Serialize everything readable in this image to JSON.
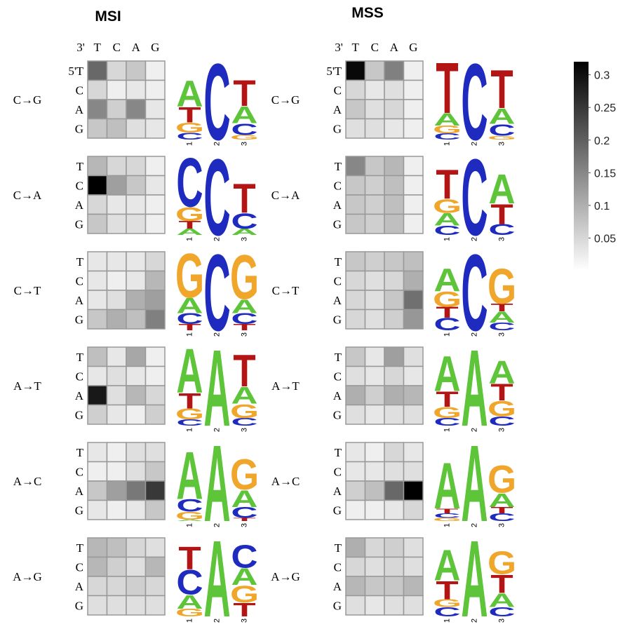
{
  "colors": {
    "A": "#5ec43a",
    "C": "#1f2bbf",
    "G": "#efa62a",
    "T": "#b31515",
    "grid_line": "#999999",
    "cell_gradient": [
      "#ffffff",
      "#000000"
    ]
  },
  "chart_data": [
    {
      "type": "heatmap",
      "title": "MSI",
      "corner_labels": {
        "col_end": "3'",
        "row_end": "5'"
      },
      "columns": [
        "T",
        "C",
        "A",
        "G"
      ],
      "rows": [
        "T",
        "C",
        "A",
        "G"
      ],
      "color_scale": {
        "min": 0,
        "max": 0.32,
        "ticks": [
          "0.3",
          "0.25",
          "0.2",
          "0.15",
          "0.1",
          "0.05"
        ],
        "tick_values": [
          0.3,
          0.25,
          0.2,
          0.15,
          0.1,
          0.05
        ]
      },
      "panels": [
        {
          "mutation": "C→G",
          "values": [
            [
              0.19,
              0.05,
              0.07,
              0.02
            ],
            [
              0.05,
              0.02,
              0.03,
              0.02
            ],
            [
              0.15,
              0.06,
              0.15,
              0.03
            ],
            [
              0.07,
              0.08,
              0.04,
              0.03
            ]
          ],
          "logo": [
            [
              {
                "b": "C",
                "h": 0.09
              },
              {
                "b": "G",
                "h": 0.13
              },
              {
                "b": "T",
                "h": 0.2
              },
              {
                "b": "A",
                "h": 0.34
              }
            ],
            [
              {
                "b": "C",
                "h": 1.0
              }
            ],
            [
              {
                "b": "G",
                "h": 0.06
              },
              {
                "b": "C",
                "h": 0.15
              },
              {
                "b": "A",
                "h": 0.22
              },
              {
                "b": "T",
                "h": 0.34
              }
            ]
          ]
        },
        {
          "mutation": "C→A",
          "values": [
            [
              0.09,
              0.05,
              0.05,
              0.02
            ],
            [
              0.32,
              0.12,
              0.07,
              0.03
            ],
            [
              0.05,
              0.03,
              0.03,
              0.02
            ],
            [
              0.07,
              0.04,
              0.04,
              0.02
            ]
          ],
          "logo": [
            [
              {
                "b": "A",
                "h": 0.08
              },
              {
                "b": "T",
                "h": 0.1
              },
              {
                "b": "G",
                "h": 0.18
              },
              {
                "b": "C",
                "h": 0.64
              }
            ],
            [
              {
                "b": "C",
                "h": 1.0
              }
            ],
            [
              {
                "b": "A",
                "h": 0.08
              },
              {
                "b": "C",
                "h": 0.2
              },
              {
                "b": "T",
                "h": 0.38
              }
            ]
          ]
        },
        {
          "mutation": "C→T",
          "values": [
            [
              0.03,
              0.03,
              0.03,
              0.05
            ],
            [
              0.03,
              0.02,
              0.03,
              0.09
            ],
            [
              0.03,
              0.04,
              0.1,
              0.12
            ],
            [
              0.07,
              0.1,
              0.08,
              0.16
            ]
          ],
          "logo": [
            [
              {
                "b": "T",
                "h": 0.08
              },
              {
                "b": "C",
                "h": 0.14
              },
              {
                "b": "A",
                "h": 0.2
              },
              {
                "b": "G",
                "h": 0.58
              }
            ],
            [
              {
                "b": "C",
                "h": 1.0
              }
            ],
            [
              {
                "b": "T",
                "h": 0.08
              },
              {
                "b": "C",
                "h": 0.14
              },
              {
                "b": "A",
                "h": 0.18
              },
              {
                "b": "G",
                "h": 0.58
              }
            ]
          ]
        },
        {
          "mutation": "A→T",
          "values": [
            [
              0.08,
              0.03,
              0.11,
              0.02
            ],
            [
              0.03,
              0.04,
              0.03,
              0.02
            ],
            [
              0.29,
              0.04,
              0.09,
              0.05
            ],
            [
              0.06,
              0.03,
              0.02,
              0.06
            ]
          ],
          "logo": [
            [
              {
                "b": "C",
                "h": 0.08
              },
              {
                "b": "G",
                "h": 0.14
              },
              {
                "b": "T",
                "h": 0.2
              },
              {
                "b": "A",
                "h": 0.58
              }
            ],
            [
              {
                "b": "A",
                "h": 1.0
              }
            ],
            [
              {
                "b": "C",
                "h": 0.1
              },
              {
                "b": "G",
                "h": 0.18
              },
              {
                "b": "A",
                "h": 0.22
              },
              {
                "b": "T",
                "h": 0.42
              }
            ]
          ]
        },
        {
          "mutation": "A→C",
          "values": [
            [
              0.03,
              0.02,
              0.04,
              0.04
            ],
            [
              0.02,
              0.02,
              0.04,
              0.07
            ],
            [
              0.07,
              0.12,
              0.17,
              0.25
            ],
            [
              0.03,
              0.02,
              0.03,
              0.07
            ]
          ],
          "logo": [
            [
              {
                "b": "A",
                "h": 0.02
              },
              {
                "b": "G",
                "h": 0.1
              },
              {
                "b": "C",
                "h": 0.16
              },
              {
                "b": "A",
                "h": 0.62
              }
            ],
            [
              {
                "b": "A",
                "h": 1.0
              }
            ],
            [
              {
                "b": "T",
                "h": 0.04
              },
              {
                "b": "C",
                "h": 0.14
              },
              {
                "b": "A",
                "h": 0.22
              },
              {
                "b": "G",
                "h": 0.4
              }
            ]
          ]
        },
        {
          "mutation": "A→G",
          "values": [
            [
              0.09,
              0.08,
              0.05,
              0.04
            ],
            [
              0.09,
              0.06,
              0.04,
              0.09
            ],
            [
              0.05,
              0.05,
              0.06,
              0.05
            ],
            [
              0.04,
              0.04,
              0.04,
              0.04
            ]
          ],
          "logo": [
            [
              {
                "b": "G",
                "h": 0.1
              },
              {
                "b": "A",
                "h": 0.18
              },
              {
                "b": "C",
                "h": 0.32
              },
              {
                "b": "T",
                "h": 0.3
              }
            ],
            [
              {
                "b": "A",
                "h": 1.0
              }
            ],
            [
              {
                "b": "T",
                "h": 0.18
              },
              {
                "b": "G",
                "h": 0.22
              },
              {
                "b": "A",
                "h": 0.22
              },
              {
                "b": "C",
                "h": 0.3
              }
            ]
          ]
        }
      ]
    },
    {
      "type": "heatmap",
      "title": "MSS",
      "corner_labels": {
        "col_end": "3'",
        "row_end": "5'"
      },
      "columns": [
        "T",
        "C",
        "A",
        "G"
      ],
      "rows": [
        "T",
        "C",
        "A",
        "G"
      ],
      "color_scale": {
        "min": 0,
        "max": 0.32,
        "ticks": [
          "0.3",
          "0.25",
          "0.2",
          "0.15",
          "0.1",
          "0.05"
        ],
        "tick_values": [
          0.3,
          0.25,
          0.2,
          0.15,
          0.1,
          0.05
        ]
      },
      "panels": [
        {
          "mutation": "C→G",
          "values": [
            [
              0.31,
              0.07,
              0.16,
              0.02
            ],
            [
              0.05,
              0.03,
              0.04,
              0.02
            ],
            [
              0.07,
              0.04,
              0.05,
              0.02
            ],
            [
              0.04,
              0.04,
              0.03,
              0.02
            ]
          ],
          "logo": [
            [
              {
                "b": "C",
                "h": 0.08
              },
              {
                "b": "G",
                "h": 0.1
              },
              {
                "b": "A",
                "h": 0.16
              },
              {
                "b": "T",
                "h": 0.66
              }
            ],
            [
              {
                "b": "C",
                "h": 1.0
              }
            ],
            [
              {
                "b": "G",
                "h": 0.05
              },
              {
                "b": "C",
                "h": 0.15
              },
              {
                "b": "A",
                "h": 0.2
              },
              {
                "b": "T",
                "h": 0.5
              }
            ]
          ]
        },
        {
          "mutation": "C→A",
          "values": [
            [
              0.15,
              0.07,
              0.09,
              0.02
            ],
            [
              0.07,
              0.06,
              0.08,
              0.02
            ],
            [
              0.07,
              0.06,
              0.08,
              0.02
            ],
            [
              0.07,
              0.06,
              0.08,
              0.02
            ]
          ],
          "logo": [
            [
              {
                "b": "C",
                "h": 0.12
              },
              {
                "b": "A",
                "h": 0.16
              },
              {
                "b": "G",
                "h": 0.18
              },
              {
                "b": "T",
                "h": 0.38
              }
            ],
            [
              {
                "b": "C",
                "h": 1.0
              }
            ],
            [
              {
                "b": "C",
                "h": 0.14
              },
              {
                "b": "T",
                "h": 0.26
              },
              {
                "b": "A",
                "h": 0.38
              }
            ]
          ]
        },
        {
          "mutation": "C→T",
          "values": [
            [
              0.07,
              0.06,
              0.07,
              0.08
            ],
            [
              0.05,
              0.04,
              0.05,
              0.1
            ],
            [
              0.05,
              0.04,
              0.07,
              0.18
            ],
            [
              0.05,
              0.04,
              0.06,
              0.13
            ]
          ],
          "logo": [
            [
              {
                "b": "C",
                "h": 0.16
              },
              {
                "b": "T",
                "h": 0.14
              },
              {
                "b": "G",
                "h": 0.2
              },
              {
                "b": "A",
                "h": 0.3
              }
            ],
            [
              {
                "b": "C",
                "h": 1.0
              }
            ],
            [
              {
                "b": "C",
                "h": 0.1
              },
              {
                "b": "A",
                "h": 0.14
              },
              {
                "b": "T",
                "h": 0.1
              },
              {
                "b": "G",
                "h": 0.46
              }
            ]
          ]
        },
        {
          "mutation": "A→T",
          "values": [
            [
              0.07,
              0.03,
              0.12,
              0.04
            ],
            [
              0.04,
              0.03,
              0.05,
              0.03
            ],
            [
              0.1,
              0.06,
              0.1,
              0.09
            ],
            [
              0.04,
              0.03,
              0.04,
              0.04
            ]
          ],
          "logo": [
            [
              {
                "b": "C",
                "h": 0.1
              },
              {
                "b": "G",
                "h": 0.14
              },
              {
                "b": "T",
                "h": 0.2
              },
              {
                "b": "A",
                "h": 0.46
              }
            ],
            [
              {
                "b": "A",
                "h": 1.0
              }
            ],
            [
              {
                "b": "C",
                "h": 0.12
              },
              {
                "b": "G",
                "h": 0.2
              },
              {
                "b": "T",
                "h": 0.22
              },
              {
                "b": "A",
                "h": 0.3
              }
            ]
          ]
        },
        {
          "mutation": "A→C",
          "values": [
            [
              0.03,
              0.02,
              0.05,
              0.03
            ],
            [
              0.03,
              0.03,
              0.04,
              0.04
            ],
            [
              0.06,
              0.08,
              0.19,
              0.32
            ],
            [
              0.02,
              0.02,
              0.03,
              0.05
            ]
          ],
          "logo": [
            [
              {
                "b": "G",
                "h": 0.04
              },
              {
                "b": "C",
                "h": 0.06
              },
              {
                "b": "T",
                "h": 0.06
              },
              {
                "b": "A",
                "h": 0.6
              }
            ],
            [
              {
                "b": "A",
                "h": 1.0
              }
            ],
            [
              {
                "b": "C",
                "h": 0.1
              },
              {
                "b": "T",
                "h": 0.08
              },
              {
                "b": "A",
                "h": 0.18
              },
              {
                "b": "G",
                "h": 0.36
              }
            ]
          ]
        },
        {
          "mutation": "A→G",
          "values": [
            [
              0.1,
              0.05,
              0.06,
              0.04
            ],
            [
              0.05,
              0.04,
              0.05,
              0.04
            ],
            [
              0.09,
              0.07,
              0.07,
              0.09
            ],
            [
              0.04,
              0.03,
              0.04,
              0.04
            ]
          ],
          "logo": [
            [
              {
                "b": "C",
                "h": 0.12
              },
              {
                "b": "G",
                "h": 0.1
              },
              {
                "b": "T",
                "h": 0.24
              },
              {
                "b": "A",
                "h": 0.4
              }
            ],
            [
              {
                "b": "A",
                "h": 1.0
              }
            ],
            [
              {
                "b": "C",
                "h": 0.12
              },
              {
                "b": "A",
                "h": 0.18
              },
              {
                "b": "T",
                "h": 0.24
              },
              {
                "b": "G",
                "h": 0.3
              }
            ]
          ]
        }
      ]
    }
  ]
}
